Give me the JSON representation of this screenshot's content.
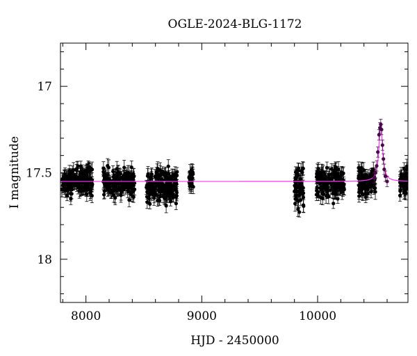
{
  "chart_data": {
    "type": "scatter",
    "title": "OGLE-2024-BLG-1172",
    "xlabel": "HJD - 2450000",
    "ylabel": "I magnitude",
    "xlim": [
      7780,
      10780
    ],
    "ylim": [
      18.25,
      16.75
    ],
    "y_inverted": true,
    "x_ticks": [
      8000,
      9000,
      10000
    ],
    "y_ticks": [
      17,
      17.5,
      18
    ],
    "grid": false,
    "legend": "none",
    "baseline_mag": 17.55,
    "colors": {
      "points": "#000000",
      "model": "#ff33ff",
      "event_points": "#4a0a4a"
    },
    "seasons": [
      {
        "start": 7790,
        "end": 8060,
        "mean": 17.55,
        "spread": 0.04
      },
      {
        "start": 8150,
        "end": 8420,
        "mean": 17.56,
        "spread": 0.04
      },
      {
        "start": 8520,
        "end": 8790,
        "mean": 17.57,
        "spread": 0.05
      },
      {
        "start": 8890,
        "end": 8930,
        "mean": 17.55,
        "spread": 0.03
      },
      {
        "start": 9800,
        "end": 9880,
        "mean": 17.58,
        "spread": 0.06
      },
      {
        "start": 9990,
        "end": 10230,
        "mean": 17.56,
        "spread": 0.04
      },
      {
        "start": 10350,
        "end": 10500,
        "mean": 17.55,
        "spread": 0.04
      },
      {
        "start": 10710,
        "end": 10780,
        "mean": 17.56,
        "spread": 0.04
      }
    ],
    "event_points": [
      {
        "x": 10490,
        "y": 17.53
      },
      {
        "x": 10500,
        "y": 17.5
      },
      {
        "x": 10510,
        "y": 17.46
      },
      {
        "x": 10520,
        "y": 17.38
      },
      {
        "x": 10530,
        "y": 17.28
      },
      {
        "x": 10538,
        "y": 17.24
      },
      {
        "x": 10545,
        "y": 17.22
      },
      {
        "x": 10552,
        "y": 17.25
      },
      {
        "x": 10560,
        "y": 17.34
      },
      {
        "x": 10568,
        "y": 17.42
      },
      {
        "x": 10575,
        "y": 17.48
      },
      {
        "x": 10585,
        "y": 17.52
      },
      {
        "x": 10600,
        "y": 17.55
      }
    ],
    "model_peak": {
      "t0": 10545,
      "mag": 17.21,
      "width": 18
    }
  }
}
